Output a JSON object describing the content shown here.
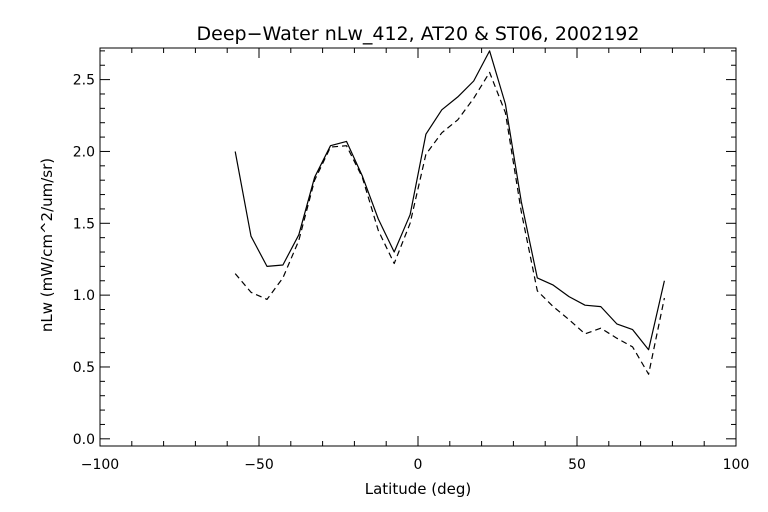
{
  "chart_data": {
    "type": "line",
    "title": "Deep−Water nLw_412, AT20 & ST06, 2002192",
    "xlabel": "Latitude (deg)",
    "ylabel": "nLw (mW/cm^2/um/sr)",
    "xlim": [
      -100,
      100
    ],
    "ylim": [
      -0.05,
      2.72
    ],
    "x_ticks": [
      -100,
      -50,
      0,
      50,
      100
    ],
    "x_tick_labels": [
      "−100",
      "−50",
      "0",
      "50",
      "100"
    ],
    "y_ticks": [
      0.0,
      0.5,
      1.0,
      1.5,
      2.0,
      2.5
    ],
    "y_tick_labels": [
      "0.0",
      "0.5",
      "1.0",
      "1.5",
      "2.0",
      "2.5"
    ],
    "x_minor_step": 10,
    "y_minor_step": 0.1,
    "grid": false,
    "series": [
      {
        "style": "solid",
        "x": [
          -57.5,
          -52.5,
          -47.5,
          -42.5,
          -37.5,
          -32.5,
          -27.5,
          -22.5,
          -17.5,
          -12.5,
          -7.5,
          -2.5,
          2.5,
          7.5,
          12.5,
          17.5,
          22.5,
          27.5,
          32.5,
          37.5,
          42.5,
          47.5,
          52.5,
          57.5,
          62.5,
          67.5,
          72.5,
          77.5
        ],
        "y": [
          2.0,
          1.41,
          1.2,
          1.21,
          1.42,
          1.82,
          2.04,
          2.07,
          1.83,
          1.53,
          1.3,
          1.56,
          2.12,
          2.29,
          2.38,
          2.49,
          2.7,
          2.33,
          1.65,
          1.12,
          1.07,
          0.99,
          0.93,
          0.92,
          0.8,
          0.76,
          0.62,
          1.1
        ]
      },
      {
        "style": "dashed",
        "x": [
          -57.5,
          -52.5,
          -47.5,
          -42.5,
          -37.5,
          -32.5,
          -27.5,
          -22.5,
          -17.5,
          -12.5,
          -7.5,
          -2.5,
          2.5,
          7.5,
          12.5,
          17.5,
          22.5,
          27.5,
          32.5,
          37.5,
          42.5,
          47.5,
          52.5,
          57.5,
          62.5,
          67.5,
          72.5,
          77.5
        ],
        "y": [
          1.15,
          1.02,
          0.97,
          1.12,
          1.38,
          1.8,
          2.03,
          2.04,
          1.82,
          1.45,
          1.22,
          1.5,
          1.98,
          2.13,
          2.22,
          2.37,
          2.55,
          2.27,
          1.58,
          1.03,
          0.92,
          0.83,
          0.73,
          0.77,
          0.7,
          0.64,
          0.45,
          0.98
        ]
      }
    ]
  }
}
